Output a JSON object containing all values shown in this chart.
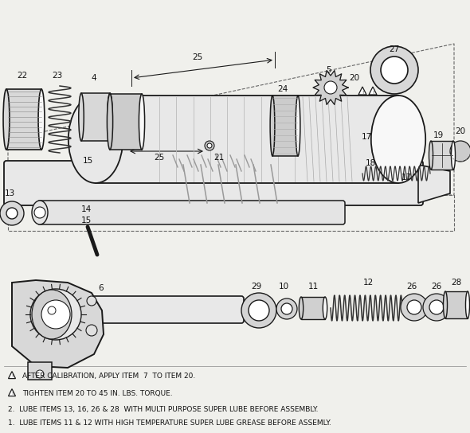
{
  "bg_color": "#f0f0ec",
  "line_color": "#1a1a1a",
  "notes": [
    "AFTER CALIBRATION, APPLY ITEM  7  TO ITEM 20.",
    "TIGHTEN ITEM 20 TO 45 IN. LBS. TORQUE.",
    "2.  LUBE ITEMS 13, 16, 26 & 28  WITH MULTI PURPOSE SUPER LUBE BEFORE ASSEMBLY.",
    "1.  LUBE ITEMS 11 & 12 WITH HIGH TEMPERATURE SUPER LUBE GREASE BEFORE ASSEMLY."
  ]
}
